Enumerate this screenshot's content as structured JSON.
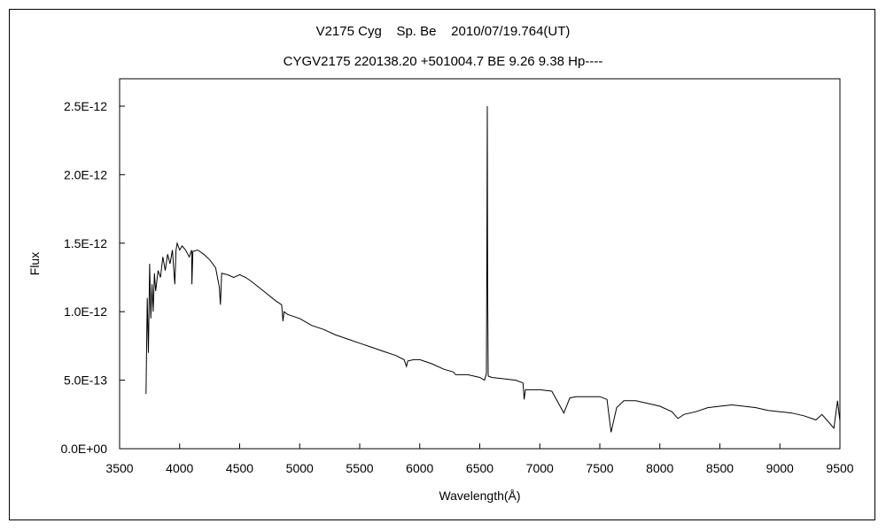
{
  "chart_data": {
    "type": "line",
    "title": "V2175 Cyg    Sp. Be    2010/07/19.764(UT)",
    "subtitle": "CYGV2175 220138.20 +501004.7 BE 9.26 9.38 Hp----",
    "xlabel": "Wavelength(Å)",
    "ylabel": "Flux",
    "xlim": [
      3500,
      9500
    ],
    "ylim": [
      0,
      2.7e-12
    ],
    "x_ticks": [
      3500,
      4000,
      4500,
      5000,
      5500,
      6000,
      6500,
      7000,
      7500,
      8000,
      8500,
      9000,
      9500
    ],
    "x_tick_labels": [
      "3500",
      "4000",
      "4500",
      "5000",
      "5500",
      "6000",
      "6500",
      "7000",
      "7500",
      "8000",
      "8500",
      "9000",
      "9500"
    ],
    "y_ticks": [
      0,
      5e-13,
      1e-12,
      1.5e-12,
      2e-12,
      2.5e-12
    ],
    "y_tick_labels": [
      "0.0E+00",
      "5.0E-13",
      "1.0E-12",
      "1.5E-12",
      "2.0E-12",
      "2.5E-12"
    ],
    "grid": false,
    "legend": "none",
    "series": [
      {
        "color": "#000000",
        "x": [
          3720,
          3730,
          3740,
          3750,
          3760,
          3770,
          3780,
          3790,
          3800,
          3820,
          3840,
          3860,
          3880,
          3900,
          3920,
          3940,
          3960,
          3970,
          3980,
          4000,
          4020,
          4050,
          4080,
          4100,
          4102,
          4110,
          4150,
          4200,
          4250,
          4300,
          4330,
          4340,
          4350,
          4400,
          4450,
          4500,
          4550,
          4600,
          4700,
          4800,
          4850,
          4861,
          4870,
          4900,
          5000,
          5100,
          5200,
          5300,
          5400,
          5500,
          5600,
          5700,
          5800,
          5870,
          5890,
          5900,
          5950,
          6000,
          6100,
          6200,
          6280,
          6300,
          6400,
          6500,
          6540,
          6555,
          6560,
          6563,
          6566,
          6570,
          6600,
          6700,
          6800,
          6860,
          6870,
          6880,
          6900,
          7000,
          7100,
          7200,
          7250,
          7300,
          7400,
          7500,
          7560,
          7594,
          7640,
          7700,
          7800,
          7900,
          8000,
          8100,
          8150,
          8200,
          8300,
          8400,
          8500,
          8600,
          8700,
          8800,
          8900,
          9000,
          9100,
          9200,
          9300,
          9350,
          9400,
          9450,
          9480,
          9500
        ],
        "values": [
          4e-13,
          1.1e-12,
          7e-13,
          1.35e-12,
          9.5e-13,
          1.2e-12,
          1e-12,
          1.28e-12,
          1.15e-12,
          1.3e-12,
          1.25e-12,
          1.4e-12,
          1.3e-12,
          1.42e-12,
          1.35e-12,
          1.45e-12,
          1.2e-12,
          1.45e-12,
          1.5e-12,
          1.45e-12,
          1.48e-12,
          1.45e-12,
          1.4e-12,
          1.45e-12,
          1.2e-12,
          1.44e-12,
          1.45e-12,
          1.42e-12,
          1.38e-12,
          1.32e-12,
          1.18e-12,
          1.05e-12,
          1.28e-12,
          1.27e-12,
          1.25e-12,
          1.27e-12,
          1.25e-12,
          1.22e-12,
          1.15e-12,
          1.08e-12,
          1.05e-12,
          9.3e-13,
          1e-12,
          9.8e-13,
          9.5e-13,
          9e-13,
          8.7e-13,
          8.3e-13,
          8e-13,
          7.7e-13,
          7.4e-13,
          7.1e-13,
          6.8e-13,
          6.5e-13,
          6e-13,
          6.4e-13,
          6.5e-13,
          6.5e-13,
          6.2e-13,
          5.8e-13,
          5.6e-13,
          5.4e-13,
          5.4e-13,
          5.2e-13,
          5e-13,
          5.5e-13,
          1.6e-12,
          2.5e-12,
          1.2e-12,
          5.3e-13,
          5.2e-13,
          5.1e-13,
          5e-13,
          4.8e-13,
          3.6e-13,
          4.3e-13,
          4.3e-13,
          4.3e-13,
          4.2e-13,
          2.6e-13,
          3.7e-13,
          3.8e-13,
          3.8e-13,
          3.8e-13,
          3.6e-13,
          1.2e-13,
          3e-13,
          3.5e-13,
          3.5e-13,
          3.3e-13,
          3.1e-13,
          2.7e-13,
          2.2e-13,
          2.5e-13,
          2.7e-13,
          3e-13,
          3.1e-13,
          3.2e-13,
          3.1e-13,
          3e-13,
          2.8e-13,
          2.7e-13,
          2.6e-13,
          2.4e-13,
          2.1e-13,
          2.5e-13,
          2e-13,
          1.5e-13,
          3.5e-13,
          2e-13
        ]
      }
    ]
  }
}
